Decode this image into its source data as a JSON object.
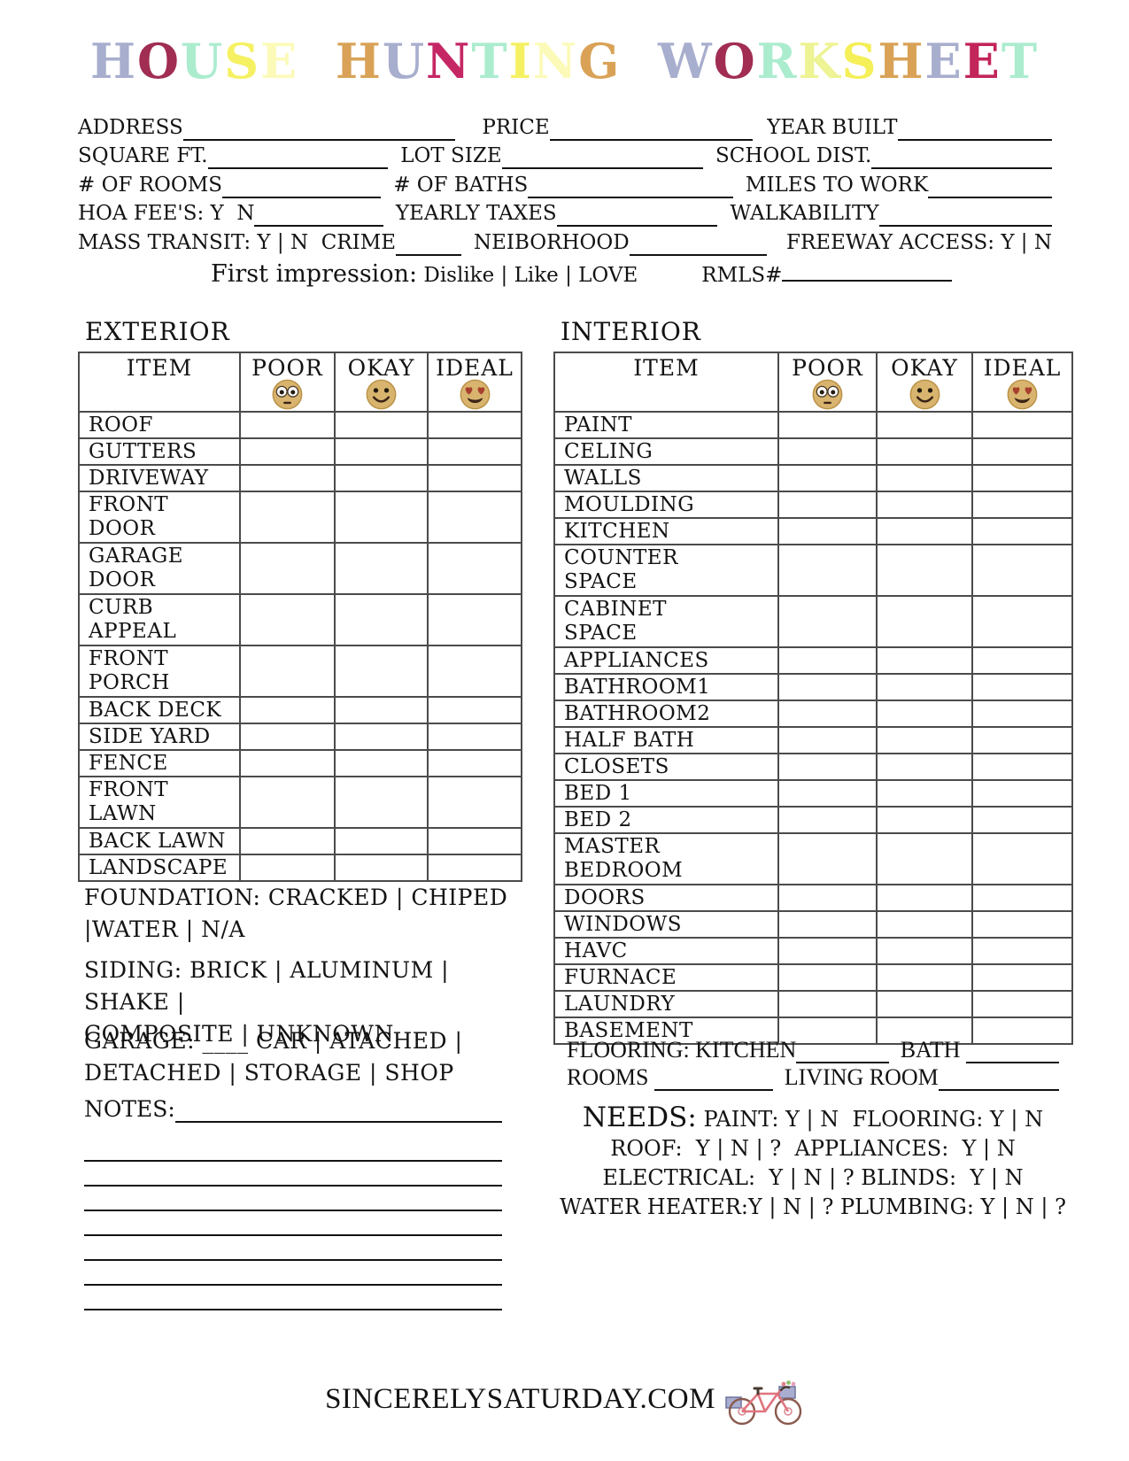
{
  "title": {
    "text": "HOUSE HUNTING WORKSHEET",
    "letters": [
      {
        "ch": "H",
        "color": "#a8aecd"
      },
      {
        "ch": "O",
        "color": "#a12d52"
      },
      {
        "ch": "U",
        "color": "#abeccf"
      },
      {
        "ch": "S",
        "color": "#f5f163"
      },
      {
        "ch": "E",
        "color": "#fcfab9"
      },
      {
        "ch": " "
      },
      {
        "ch": "H",
        "color": "#d9a257"
      },
      {
        "ch": "U",
        "color": "#a8aecd"
      },
      {
        "ch": "N",
        "color": "#c52765"
      },
      {
        "ch": "T",
        "color": "#abeccf"
      },
      {
        "ch": "I",
        "color": "#f5f163"
      },
      {
        "ch": "N",
        "color": "#fcfab9"
      },
      {
        "ch": "G",
        "color": "#d9a257"
      },
      {
        "ch": " "
      },
      {
        "ch": "W",
        "color": "#a8aecd"
      },
      {
        "ch": "O",
        "color": "#a12d52"
      },
      {
        "ch": "R",
        "color": "#abeccf"
      },
      {
        "ch": "K",
        "color": "#eef393"
      },
      {
        "ch": "S",
        "color": "#f5ef58"
      },
      {
        "ch": "H",
        "color": "#d9a257"
      },
      {
        "ch": "E",
        "color": "#a8aecd"
      },
      {
        "ch": "E",
        "color": "#c22559"
      },
      {
        "ch": "T",
        "color": "#abeccf"
      }
    ]
  },
  "form": {
    "rows": [
      [
        {
          "label": "ADDRESS"
        },
        {
          "line": 335
        },
        {
          "label": "PRICE",
          "gap": 30
        },
        {
          "line": 250
        },
        {
          "label": "YEAR BUILT",
          "gap": 16
        },
        {
          "line": 190
        }
      ],
      [
        {
          "label": "SQUARE FT."
        },
        {
          "line": 215
        },
        {
          "label": "LOT SIZE",
          "gap": 14
        },
        {
          "line": 240
        },
        {
          "label": "SCHOOL DIST.",
          "gap": 14
        },
        {
          "line": 215
        }
      ],
      [
        {
          "label": "# OF ROOMS"
        },
        {
          "line": 205
        },
        {
          "label": "# OF BATHS",
          "gap": 14
        },
        {
          "line": 265
        },
        {
          "label": "MILES TO WORK",
          "gap": 14
        },
        {
          "line": 160
        }
      ],
      [
        {
          "label": "HOA FEE'S: Y  N"
        },
        {
          "line": 160
        },
        {
          "label": "YEARLY TAXES",
          "gap": 14
        },
        {
          "line": 200
        },
        {
          "label": "WALKABILITY",
          "gap": 14
        },
        {
          "line": 215
        }
      ],
      [
        {
          "label": "MASS TRANSIT: Y | N  CRIME"
        },
        {
          "line": 118
        },
        {
          "label": "NEIBORHOOD",
          "gap": 14
        },
        {
          "line": 248
        },
        {
          "label": "FREEWAY ACCESS: Y | N",
          "gap": 22
        }
      ]
    ]
  },
  "first_impression": {
    "label": "First impression:",
    "options": " Dislike | Like | LOVE",
    "rmls_label": "RMLS#"
  },
  "exterior": {
    "heading": "EXTERIOR",
    "columns": [
      "ITEM",
      "POOR",
      "OKAY",
      "IDEAL"
    ],
    "emojis": [
      "flushed-face",
      "smiley-face",
      "heart-eyes"
    ],
    "items": [
      [
        "ROOF"
      ],
      [
        "GUTTERS"
      ],
      [
        "DRIVEWAY"
      ],
      [
        "FRONT",
        "DOOR"
      ],
      [
        "GARAGE",
        "DOOR"
      ],
      [
        "CURB",
        "APPEAL"
      ],
      [
        "FRONT",
        "PORCH"
      ],
      [
        "BACK DECK"
      ],
      [
        "SIDE YARD"
      ],
      [
        "FENCE"
      ],
      [
        "FRONT",
        "LAWN"
      ],
      [
        "BACK LAWN"
      ],
      [
        "LANDSCAPE"
      ]
    ]
  },
  "interior": {
    "heading": "INTERIOR",
    "columns": [
      "ITEM",
      "POOR",
      "OKAY",
      "IDEAL"
    ],
    "emojis": [
      "flushed-face",
      "smiley-face",
      "heart-eyes"
    ],
    "items": [
      [
        "PAINT"
      ],
      [
        "CELING"
      ],
      [
        "WALLS"
      ],
      [
        "MOULDING"
      ],
      [
        "KITCHEN"
      ],
      [
        "COUNTER",
        "SPACE"
      ],
      [
        "CABINET",
        "SPACE"
      ],
      [
        "APPLIANCES"
      ],
      [
        "BATHROOM1"
      ],
      [
        "BATHROOM2"
      ],
      [
        "HALF BATH"
      ],
      [
        "CLOSETS"
      ],
      [
        "BED 1"
      ],
      [
        "BED 2"
      ],
      [
        "MASTER",
        "BEDROOM"
      ],
      [
        "DOORS"
      ],
      [
        "WINDOWS"
      ],
      [
        "HAVC"
      ],
      [
        "FURNACE"
      ],
      [
        "LAUNDRY"
      ],
      [
        "BASEMENT"
      ]
    ]
  },
  "emoji_colors": {
    "face": "#d8b46e",
    "face_edge": "#bb9247",
    "white": "#ffffff",
    "eye_ring": "#4a3a28",
    "eye": "#231a10",
    "heart": "#a8402e",
    "mouth": "#3b2416"
  },
  "bottom_left": {
    "foundation_lines": [
      "FOUNDATION: CRACKED | CHIPED",
      "|WATER | N/A"
    ],
    "siding_lines": [
      "SIDING: BRICK | ALUMINUM | SHAKE |",
      "COMPOSITE | UNKNOWN"
    ],
    "garage_lines": [
      "GARAGE: ____ CAR | ATACHED |",
      "DETACHED | STORAGE | SHOP"
    ],
    "notes_label": "NOTES:",
    "notes_extra_lines": 7
  },
  "bottom_right": {
    "flooring_rows": [
      [
        {
          "label": "FLOORING: KITCHEN"
        },
        {
          "line": 118
        },
        {
          "label": " BATH ",
          "gap": 6
        },
        {
          "line": 118
        }
      ],
      [
        {
          "label": "ROOMS "
        },
        {
          "line": 138
        },
        {
          "label": " LIVING ROOM",
          "gap": 6
        },
        {
          "line": 140
        }
      ]
    ],
    "needs": {
      "heading": "NEEDS:",
      "first": " PAINT: Y | N  FLOORING: Y | N",
      "lines": [
        "ROOF:  Y | N | ?  APPLIANCES:  Y | N",
        "ELECTRICAL:  Y | N | ? BLINDS:  Y | N",
        "WATER HEATER:Y | N | ? PLUMBING: Y | N | ?"
      ]
    }
  },
  "footer": {
    "site": "SINCERELYSATURDAY.COM",
    "icon": "bicycle-icon"
  }
}
